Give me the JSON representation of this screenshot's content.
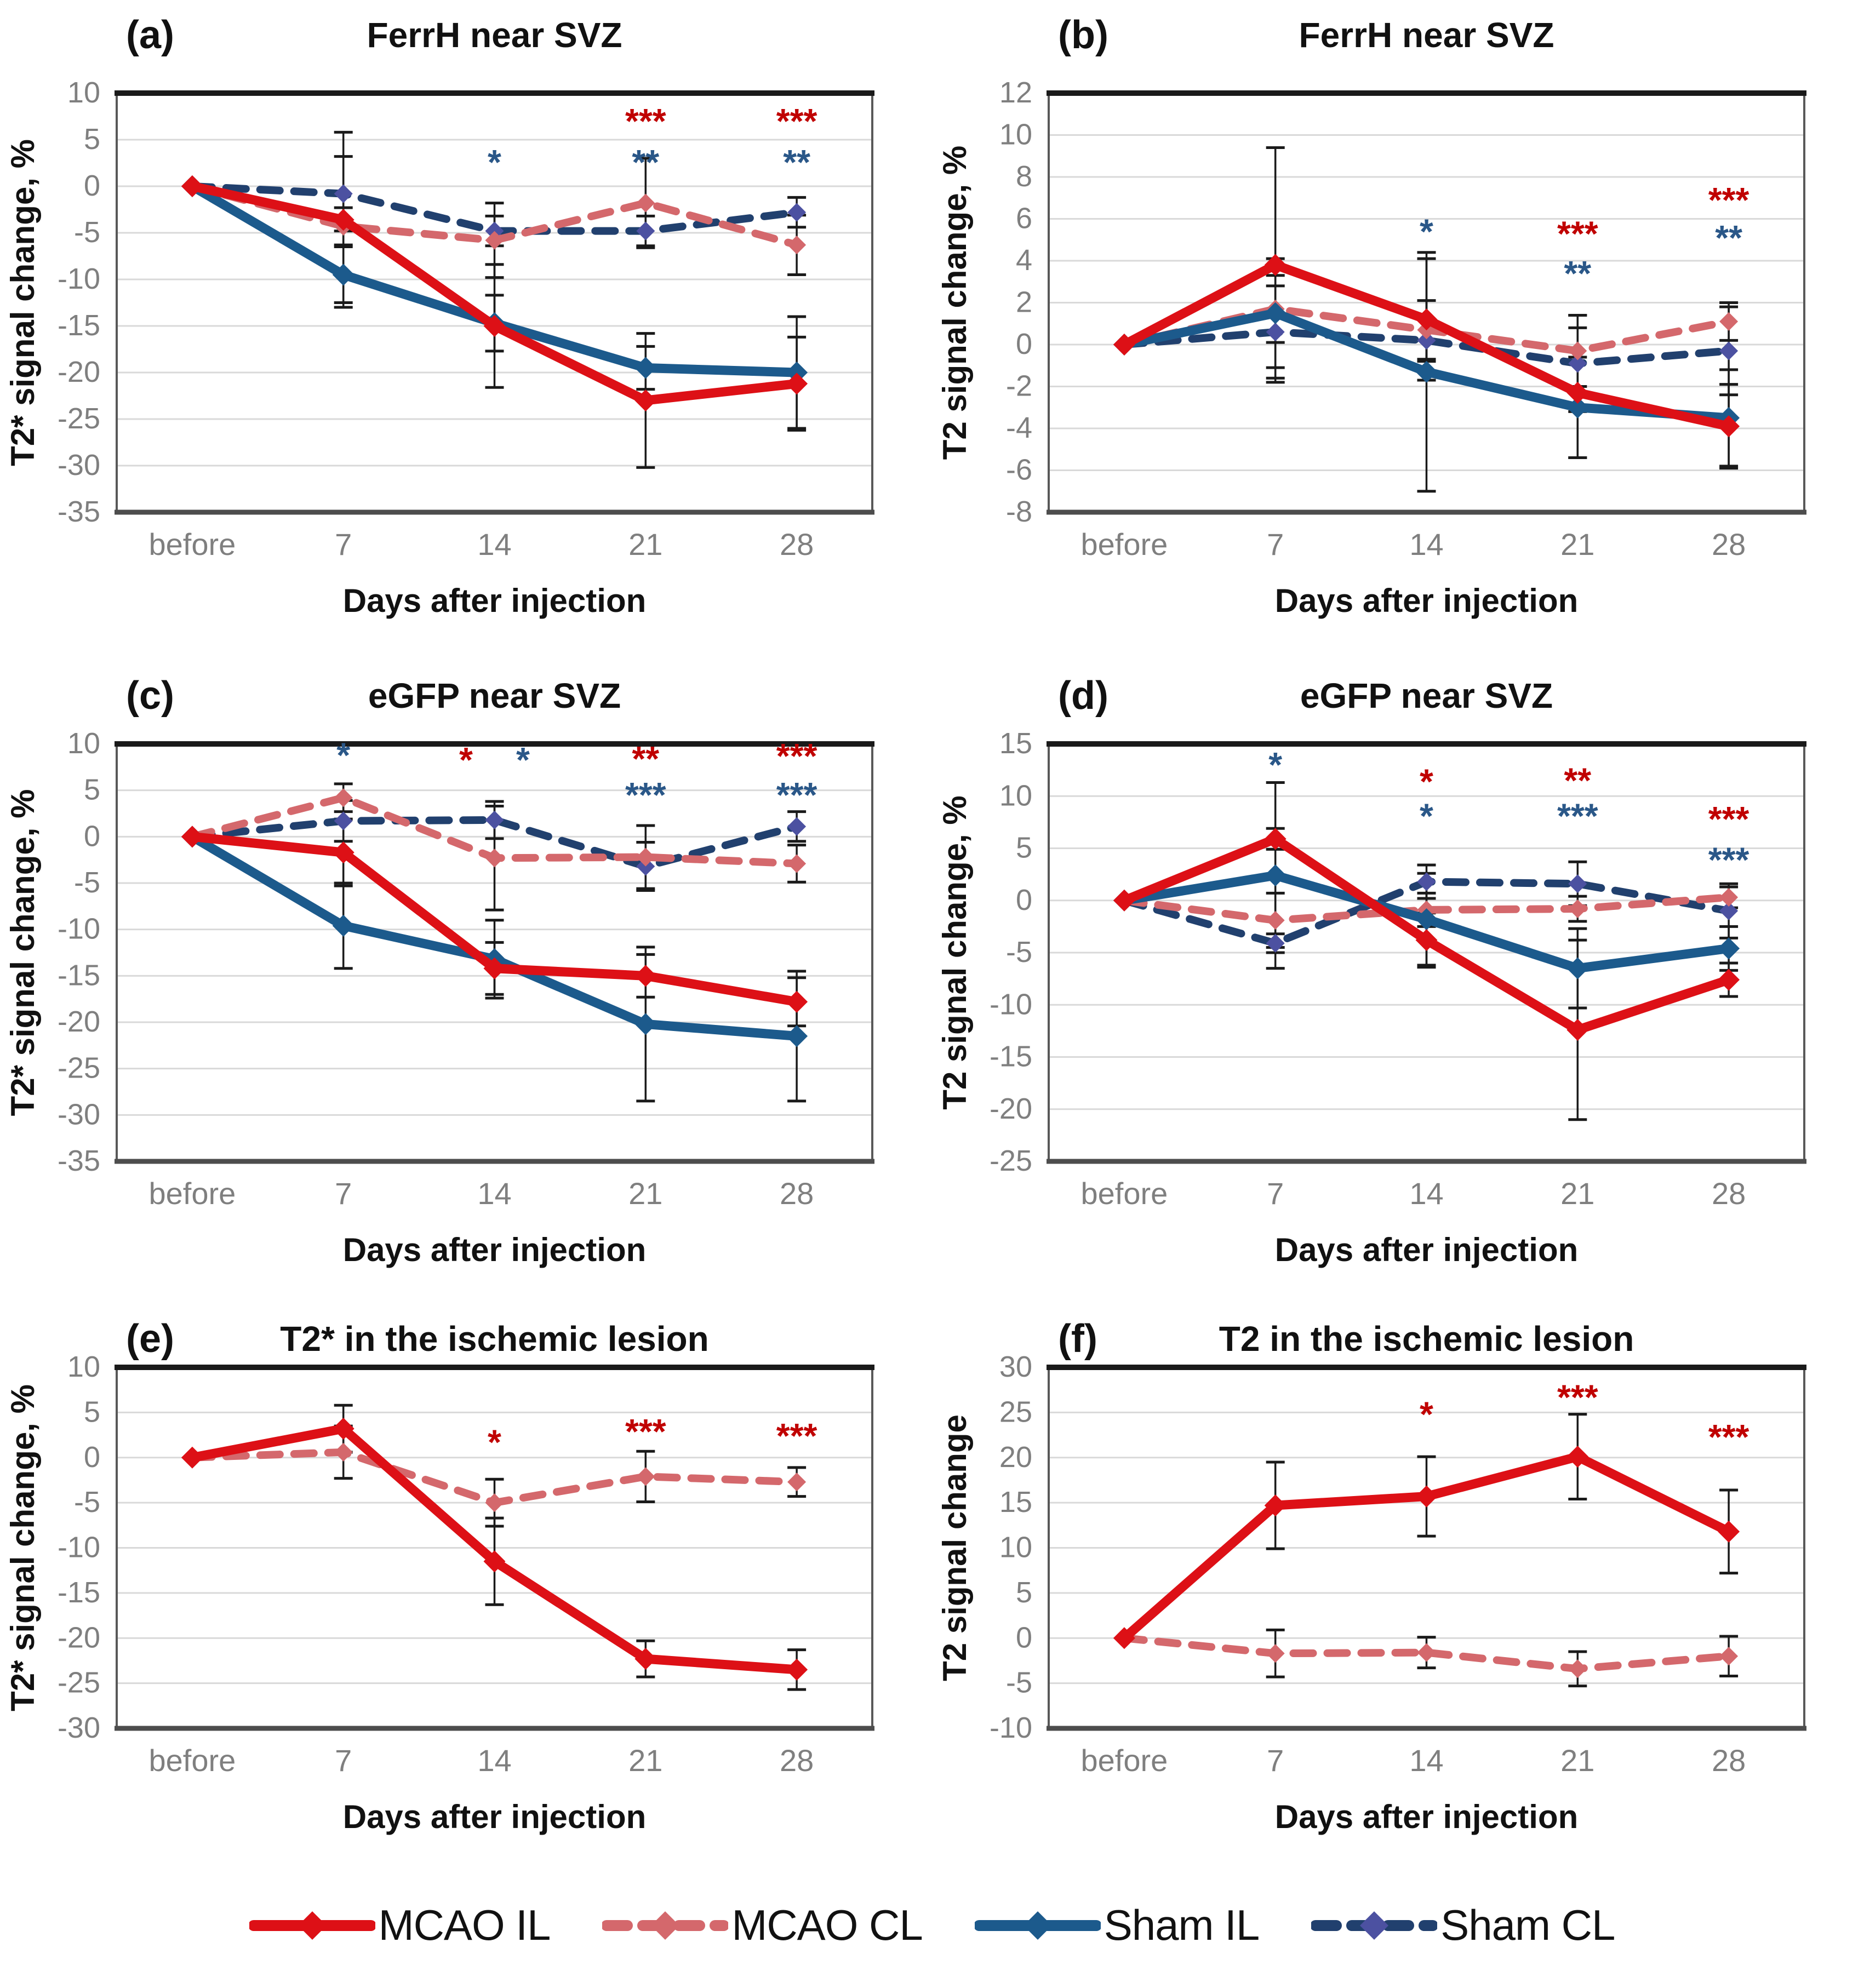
{
  "figure": {
    "x_axis_title": "Days after injection",
    "categories": [
      "before",
      "7",
      "14",
      "21",
      "28"
    ]
  },
  "colors": {
    "mcao_il": "#DD1016",
    "mcao_cl": "#D4686C",
    "sham_il": "#1C5A8C",
    "sham_cl": "#21406E",
    "sham_cl_marker": "#4C51A1",
    "star_red": "#C00000",
    "star_blue": "#2A5788",
    "grid": "#D9D9D9",
    "tick_label": "#7F7F7F",
    "error_bar": "#1A1A1A",
    "border": "#595959",
    "border_top": "#1A1A1A",
    "title": "#111111"
  },
  "chart_data": [
    {
      "id": "a",
      "type": "line",
      "letter": "(a)",
      "title": "FerrH near SVZ",
      "ylabel": "T2* signal change, %",
      "ylim": [
        -35,
        10
      ],
      "ytick_step": 5,
      "grid": true,
      "series": [
        {
          "name": "Sham CL",
          "key": "sham_cl",
          "dash": true,
          "values": [
            0,
            -0.8,
            -4.8,
            -4.8,
            -2.8
          ],
          "err": [
            0,
            4.0,
            1.6,
            1.6,
            1.6
          ]
        },
        {
          "name": "MCAO CL",
          "key": "mcao_cl",
          "dash": true,
          "values": [
            0,
            -4.3,
            -5.8,
            -1.8,
            -6.3
          ],
          "err": [
            0,
            2.0,
            4.0,
            4.8,
            3.2
          ]
        },
        {
          "name": "Sham IL",
          "key": "sham_il",
          "dash": false,
          "values": [
            0,
            -9.5,
            -14.7,
            -19.5,
            -20.0
          ],
          "err": [
            0,
            3.0,
            3.0,
            2.3,
            6.0
          ]
        },
        {
          "name": "MCAO IL",
          "key": "mcao_il",
          "dash": false,
          "values": [
            0,
            -3.6,
            -15.0,
            -23.0,
            -21.2
          ],
          "err": [
            0,
            9.4,
            6.6,
            7.2,
            5.0
          ]
        }
      ],
      "significance": [
        {
          "cat": "14",
          "color": "blue",
          "text": "*",
          "y": 2.6
        },
        {
          "cat": "21",
          "color": "red",
          "text": "***",
          "y": 7.0
        },
        {
          "cat": "21",
          "color": "blue",
          "text": "**",
          "y": 2.6
        },
        {
          "cat": "28",
          "color": "red",
          "text": "***",
          "y": 7.0
        },
        {
          "cat": "28",
          "color": "blue",
          "text": "**",
          "y": 2.6
        }
      ]
    },
    {
      "id": "b",
      "type": "line",
      "letter": "(b)",
      "title": "FerrH near SVZ",
      "ylabel": "T2 signal change, %",
      "ylim": [
        -8,
        12
      ],
      "ytick_step": 2,
      "grid": true,
      "series": [
        {
          "name": "Sham CL",
          "key": "sham_cl",
          "dash": true,
          "values": [
            0,
            0.6,
            0.2,
            -0.9,
            -0.3
          ],
          "err": [
            0,
            2.2,
            1.0,
            2.3,
            2.1
          ]
        },
        {
          "name": "MCAO CL",
          "key": "mcao_cl",
          "dash": true,
          "values": [
            0,
            1.7,
            0.7,
            -0.3,
            1.1
          ],
          "err": [
            0,
            1.6,
            1.4,
            1.7,
            0.9
          ]
        },
        {
          "name": "Sham IL",
          "key": "sham_il",
          "dash": false,
          "values": [
            0,
            1.5,
            -1.3,
            -3.0,
            -3.5
          ],
          "err": [
            0,
            2.6,
            5.7,
            2.4,
            2.3
          ]
        },
        {
          "name": "MCAO IL",
          "key": "mcao_il",
          "dash": false,
          "values": [
            0,
            3.8,
            1.2,
            -2.3,
            -3.9
          ],
          "err": [
            0,
            5.6,
            2.9,
            3.1,
            2.0
          ]
        }
      ],
      "significance": [
        {
          "cat": "14",
          "color": "blue",
          "text": "*",
          "y": 5.4
        },
        {
          "cat": "21",
          "color": "red",
          "text": "***",
          "y": 5.3
        },
        {
          "cat": "21",
          "color": "blue",
          "text": "**",
          "y": 3.4
        },
        {
          "cat": "28",
          "color": "red",
          "text": "***",
          "y": 6.9
        },
        {
          "cat": "28",
          "color": "blue",
          "text": "**",
          "y": 5.1
        }
      ]
    },
    {
      "id": "c",
      "type": "line",
      "letter": "(c)",
      "title": "eGFP near SVZ",
      "ylabel": "T2* signal change, %",
      "ylim": [
        -35,
        10
      ],
      "ytick_step": 5,
      "grid": true,
      "series": [
        {
          "name": "Sham CL",
          "key": "sham_cl",
          "dash": true,
          "values": [
            0,
            1.7,
            1.8,
            -3.2,
            1.1
          ],
          "err": [
            0,
            2.2,
            2.0,
            2.6,
            1.6
          ]
        },
        {
          "name": "MCAO CL",
          "key": "mcao_cl",
          "dash": true,
          "values": [
            0,
            4.2,
            -2.3,
            -2.2,
            -2.9
          ],
          "err": [
            0,
            1.5,
            5.6,
            3.4,
            2.0
          ]
        },
        {
          "name": "Sham IL",
          "key": "sham_il",
          "dash": false,
          "values": [
            0,
            -9.6,
            -13.2,
            -20.2,
            -21.5
          ],
          "err": [
            0,
            4.6,
            4.2,
            8.3,
            7.0
          ]
        },
        {
          "name": "MCAO IL",
          "key": "mcao_il",
          "dash": false,
          "values": [
            0,
            -1.7,
            -14.2,
            -15.0,
            -17.8
          ],
          "err": [
            0,
            3.6,
            2.8,
            2.3,
            2.6
          ]
        }
      ],
      "significance": [
        {
          "cat": "7",
          "color": "blue",
          "text": "*",
          "y": 8.8
        },
        {
          "cat": "14",
          "color": "red",
          "text": "*",
          "y": 8.3,
          "dx": -52
        },
        {
          "cat": "14",
          "color": "blue",
          "text": "*",
          "y": 8.3,
          "dx": 52
        },
        {
          "cat": "21",
          "color": "red",
          "text": "**",
          "y": 8.4
        },
        {
          "cat": "21",
          "color": "blue",
          "text": "***",
          "y": 4.5
        },
        {
          "cat": "28",
          "color": "red",
          "text": "***",
          "y": 8.7
        },
        {
          "cat": "28",
          "color": "blue",
          "text": "***",
          "y": 4.5
        }
      ]
    },
    {
      "id": "d",
      "type": "line",
      "letter": "(d)",
      "title": "eGFP near SVZ",
      "ylabel": "T2 signal change, %",
      "ylim": [
        -25,
        15
      ],
      "ytick_step": 5,
      "grid": true,
      "series": [
        {
          "name": "Sham CL",
          "key": "sham_cl",
          "dash": true,
          "values": [
            0,
            -4.1,
            1.8,
            1.6,
            -1.0
          ],
          "err": [
            0,
            0.9,
            1.6,
            2.1,
            2.6
          ]
        },
        {
          "name": "MCAO CL",
          "key": "mcao_cl",
          "dash": true,
          "values": [
            0,
            -1.9,
            -0.9,
            -0.8,
            0.3
          ],
          "err": [
            0,
            2.6,
            1.6,
            1.2,
            1.0
          ]
        },
        {
          "name": "Sham IL",
          "key": "sham_il",
          "dash": false,
          "values": [
            0,
            2.4,
            -1.8,
            -6.5,
            -4.6
          ],
          "err": [
            0,
            8.9,
            4.4,
            3.8,
            2.1
          ]
        },
        {
          "name": "MCAO IL",
          "key": "mcao_il",
          "dash": false,
          "values": [
            0,
            5.9,
            -3.8,
            -12.4,
            -7.6
          ],
          "err": [
            0,
            1.0,
            2.6,
            8.6,
            1.6
          ]
        }
      ],
      "significance": [
        {
          "cat": "7",
          "color": "blue",
          "text": "*",
          "y": 13.0
        },
        {
          "cat": "14",
          "color": "red",
          "text": "*",
          "y": 11.4
        },
        {
          "cat": "14",
          "color": "blue",
          "text": "*",
          "y": 8.1
        },
        {
          "cat": "21",
          "color": "red",
          "text": "**",
          "y": 11.5
        },
        {
          "cat": "21",
          "color": "blue",
          "text": "***",
          "y": 8.1
        },
        {
          "cat": "28",
          "color": "red",
          "text": "***",
          "y": 7.8
        },
        {
          "cat": "28",
          "color": "blue",
          "text": "***",
          "y": 3.9
        }
      ]
    },
    {
      "id": "e",
      "type": "line",
      "letter": "(e)",
      "title": "T2* in the ischemic lesion",
      "ylabel": "T2* signal change, %",
      "ylim": [
        -30,
        10
      ],
      "ytick_step": 5,
      "grid": true,
      "series": [
        {
          "name": "MCAO CL",
          "key": "mcao_cl",
          "dash": true,
          "values": [
            0,
            0.6,
            -5.0,
            -2.1,
            -2.7
          ],
          "err": [
            0,
            2.9,
            2.6,
            2.8,
            1.6
          ]
        },
        {
          "name": "MCAO IL",
          "key": "mcao_il",
          "dash": false,
          "values": [
            0,
            3.2,
            -11.5,
            -22.3,
            -23.5
          ],
          "err": [
            0,
            2.6,
            4.8,
            2.0,
            2.2
          ]
        }
      ],
      "significance": [
        {
          "cat": "14",
          "color": "red",
          "text": "*",
          "y": 1.7
        },
        {
          "cat": "21",
          "color": "red",
          "text": "***",
          "y": 2.9
        },
        {
          "cat": "28",
          "color": "red",
          "text": "***",
          "y": 2.4
        }
      ]
    },
    {
      "id": "f",
      "type": "line",
      "letter": "(f)",
      "title": "T2 in the ischemic lesion",
      "ylabel": "T2 signal change",
      "ylim": [
        -10,
        30
      ],
      "ytick_step": 5,
      "grid": true,
      "series": [
        {
          "name": "MCAO CL",
          "key": "mcao_cl",
          "dash": true,
          "values": [
            0,
            -1.7,
            -1.6,
            -3.4,
            -2.0
          ],
          "err": [
            0,
            2.6,
            1.7,
            1.9,
            2.2
          ]
        },
        {
          "name": "MCAO IL",
          "key": "mcao_il",
          "dash": false,
          "values": [
            0,
            14.7,
            15.7,
            20.1,
            11.8
          ],
          "err": [
            0,
            4.8,
            4.4,
            4.7,
            4.6
          ]
        }
      ],
      "significance": [
        {
          "cat": "14",
          "color": "red",
          "text": "*",
          "y": 24.8
        },
        {
          "cat": "21",
          "color": "red",
          "text": "***",
          "y": 26.7
        },
        {
          "cat": "28",
          "color": "red",
          "text": "***",
          "y": 22.3
        }
      ]
    }
  ],
  "legend": {
    "items": [
      {
        "label": "MCAO IL",
        "key": "mcao_il",
        "dash": false
      },
      {
        "label": "MCAO CL",
        "key": "mcao_cl",
        "dash": true
      },
      {
        "label": "Sham IL",
        "key": "sham_il",
        "dash": false
      },
      {
        "label": "Sham CL",
        "key": "sham_cl",
        "dash": true
      }
    ]
  }
}
